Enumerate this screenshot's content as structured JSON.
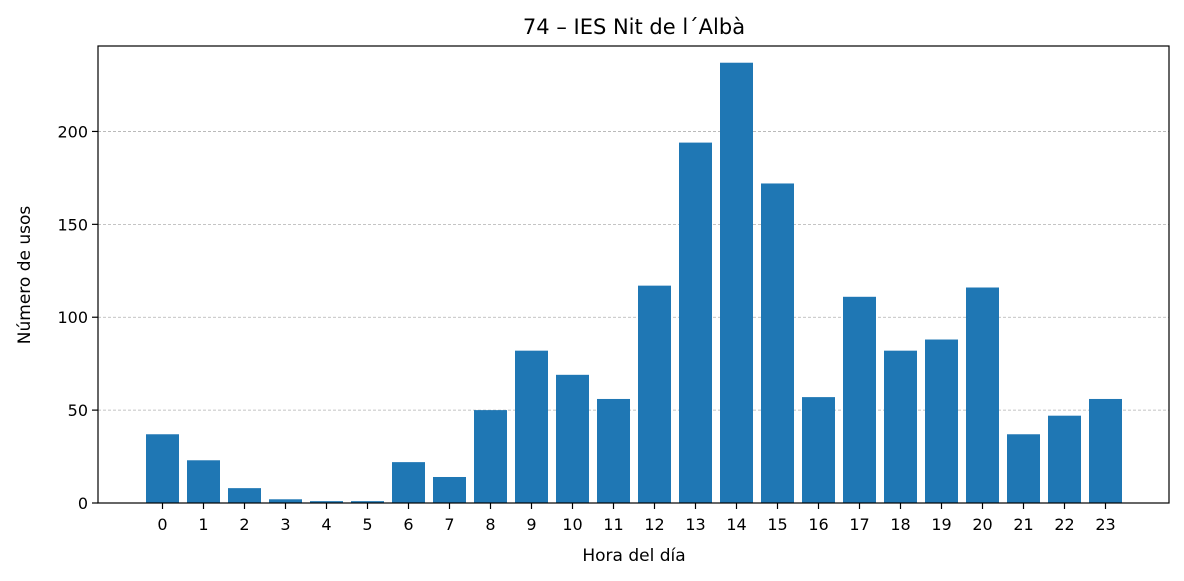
{
  "chart_data": {
    "type": "bar",
    "title": "74 – IES Nit de l´Albà",
    "xlabel": "Hora del día",
    "ylabel": "Número de usos",
    "categories": [
      "0",
      "1",
      "2",
      "3",
      "4",
      "5",
      "6",
      "7",
      "8",
      "9",
      "10",
      "11",
      "12",
      "13",
      "14",
      "15",
      "16",
      "17",
      "18",
      "19",
      "20",
      "21",
      "22",
      "23"
    ],
    "values": [
      37,
      23,
      8,
      2,
      1,
      1,
      22,
      14,
      50,
      82,
      69,
      56,
      117,
      194,
      237,
      172,
      57,
      111,
      82,
      88,
      116,
      37,
      47,
      56
    ],
    "ylim": [
      0,
      246
    ],
    "yticks": [
      0,
      50,
      100,
      150,
      200
    ],
    "grid": "y",
    "bar_color": "#1f77b4"
  }
}
